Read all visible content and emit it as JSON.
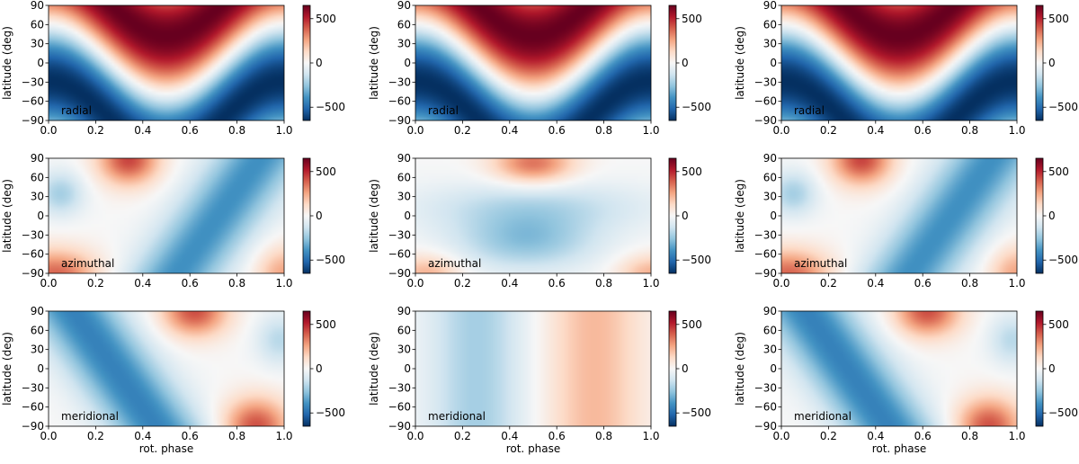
{
  "chart_data": {
    "type": "heatmap",
    "layout": {
      "rows": 3,
      "cols": 3
    },
    "colormap": {
      "name": "RdBu_r",
      "low": "#053061",
      "mid": "#f7f7f7",
      "high": "#67001f"
    },
    "color_range": [
      -650,
      650
    ],
    "xlabel": "rot. phase",
    "ylabel": "latitude (deg)",
    "xlim": [
      0.0,
      1.0
    ],
    "ylim": [
      -90,
      90
    ],
    "xticks": [
      0.0,
      0.2,
      0.4,
      0.6,
      0.8,
      1.0
    ],
    "xtick_labels": [
      "0.0",
      "0.2",
      "0.4",
      "0.6",
      "0.8",
      "1.0"
    ],
    "yticks": [
      -90,
      -60,
      -30,
      0,
      30,
      60,
      90
    ],
    "ytick_labels": [
      "−90",
      "−60",
      "−30",
      "0",
      "30",
      "60",
      "90"
    ],
    "colorbar_ticks": [
      -500,
      0,
      500
    ],
    "colorbar_tick_labels": [
      "−500",
      "0",
      "500"
    ],
    "row_labels": [
      "radial",
      "azimuthal",
      "meridional"
    ],
    "panels": [
      {
        "row": 0,
        "col": 0,
        "label": "radial",
        "field": "radial",
        "variant": "a"
      },
      {
        "row": 0,
        "col": 1,
        "label": "radial",
        "field": "radial",
        "variant": "b"
      },
      {
        "row": 0,
        "col": 2,
        "label": "radial",
        "field": "radial",
        "variant": "a"
      },
      {
        "row": 1,
        "col": 0,
        "label": "azimuthal",
        "field": "azimuthal",
        "variant": "a"
      },
      {
        "row": 1,
        "col": 1,
        "label": "azimuthal",
        "field": "azimuthal",
        "variant": "b"
      },
      {
        "row": 1,
        "col": 2,
        "label": "azimuthal",
        "field": "azimuthal",
        "variant": "a"
      },
      {
        "row": 2,
        "col": 0,
        "label": "meridional",
        "field": "meridional",
        "variant": "a"
      },
      {
        "row": 2,
        "col": 1,
        "label": "meridional",
        "field": "meridional",
        "variant": "b"
      },
      {
        "row": 2,
        "col": 2,
        "label": "meridional",
        "field": "meridional",
        "variant": "a"
      }
    ],
    "bottom_row_xlabel_only": true,
    "grid": false
  }
}
